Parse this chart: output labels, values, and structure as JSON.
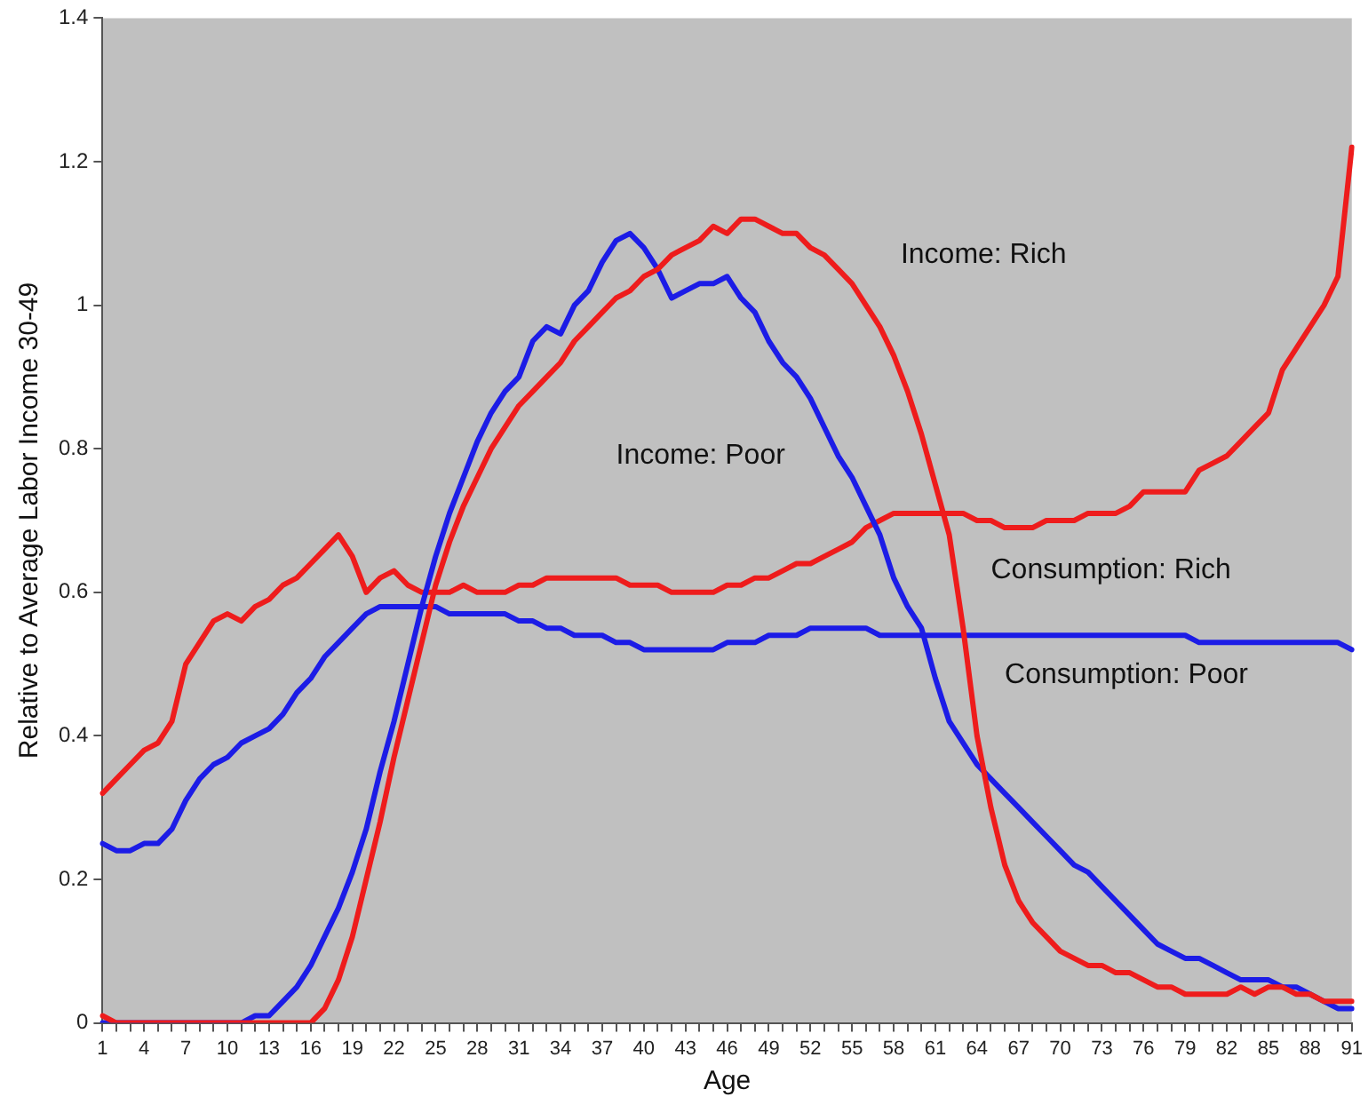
{
  "chart_data": {
    "type": "line",
    "xlabel": "Age",
    "ylabel": "Relative to Average Labor Income 30-49",
    "categories": [
      "1",
      null,
      null,
      "4",
      null,
      null,
      "7",
      null,
      null,
      "10",
      null,
      null,
      "13",
      null,
      null,
      "16",
      null,
      null,
      "19",
      null,
      null,
      "22",
      null,
      null,
      "25",
      null,
      null,
      "28",
      null,
      null,
      "31",
      null,
      null,
      "34",
      null,
      null,
      "37",
      null,
      null,
      "40",
      null,
      null,
      "43",
      null,
      null,
      "46",
      null,
      null,
      "49",
      null,
      null,
      "52",
      null,
      null,
      "55",
      null,
      null,
      "58",
      null,
      null,
      "61",
      null,
      null,
      "64",
      null,
      null,
      "67",
      null,
      null,
      "70",
      null,
      null,
      "73",
      null,
      null,
      "76",
      null,
      null,
      "79",
      null,
      null,
      "82",
      null,
      null,
      "85",
      null,
      null,
      "88",
      null,
      null,
      "91"
    ],
    "ylim": [
      0,
      1.4
    ],
    "yticks": [
      0,
      0.2,
      0.4,
      0.6,
      0.8,
      1,
      1.2,
      1.4
    ],
    "grid": false,
    "legend": false,
    "marker": "none",
    "line_style": "solid",
    "series": [
      {
        "name": "Income: Rich",
        "color": "#ee1c1c",
        "values": [
          0.01,
          0,
          0,
          0,
          0,
          0,
          0,
          0,
          0,
          0,
          0,
          0,
          0,
          0,
          0,
          0,
          0.02,
          0.06,
          0.12,
          0.2,
          0.28,
          0.37,
          0.45,
          0.53,
          0.61,
          0.67,
          0.72,
          0.76,
          0.8,
          0.83,
          0.86,
          0.88,
          0.9,
          0.92,
          0.95,
          0.97,
          0.99,
          1.01,
          1.02,
          1.04,
          1.05,
          1.07,
          1.08,
          1.09,
          1.11,
          1.1,
          1.12,
          1.12,
          1.11,
          1.1,
          1.1,
          1.08,
          1.07,
          1.05,
          1.03,
          1,
          0.97,
          0.93,
          0.88,
          0.82,
          0.75,
          0.68,
          0.55,
          0.4,
          0.3,
          0.22,
          0.17,
          0.14,
          0.12,
          0.1,
          0.09,
          0.08,
          0.08,
          0.07,
          0.07,
          0.06,
          0.05,
          0.05,
          0.04,
          0.04,
          0.04,
          0.04,
          0.05,
          0.04,
          0.05,
          0.05,
          0.04,
          0.04,
          0.03,
          0.03,
          0.03
        ]
      },
      {
        "name": "Income: Poor",
        "color": "#1c1ce6",
        "values": [
          0,
          0,
          0,
          0,
          0,
          0,
          0,
          0,
          0,
          0,
          0,
          0.01,
          0.01,
          0.03,
          0.05,
          0.08,
          0.12,
          0.16,
          0.21,
          0.27,
          0.35,
          0.42,
          0.5,
          0.58,
          0.65,
          0.71,
          0.76,
          0.81,
          0.85,
          0.88,
          0.9,
          0.95,
          0.97,
          0.96,
          1,
          1.02,
          1.06,
          1.09,
          1.1,
          1.08,
          1.05,
          1.01,
          1.02,
          1.03,
          1.03,
          1.04,
          1.01,
          0.99,
          0.95,
          0.92,
          0.9,
          0.87,
          0.83,
          0.79,
          0.76,
          0.72,
          0.68,
          0.62,
          0.58,
          0.55,
          0.48,
          0.42,
          0.39,
          0.36,
          0.34,
          0.32,
          0.3,
          0.28,
          0.26,
          0.24,
          0.22,
          0.21,
          0.19,
          0.17,
          0.15,
          0.13,
          0.11,
          0.1,
          0.09,
          0.09,
          0.08,
          0.07,
          0.06,
          0.06,
          0.06,
          0.05,
          0.05,
          0.04,
          0.03,
          0.02,
          0.02
        ]
      },
      {
        "name": "Consumption: Rich",
        "color": "#ee1c1c",
        "values": [
          0.32,
          0.34,
          0.36,
          0.38,
          0.39,
          0.42,
          0.5,
          0.53,
          0.56,
          0.57,
          0.56,
          0.58,
          0.59,
          0.61,
          0.62,
          0.64,
          0.66,
          0.68,
          0.65,
          0.6,
          0.62,
          0.63,
          0.61,
          0.6,
          0.6,
          0.6,
          0.61,
          0.6,
          0.6,
          0.6,
          0.61,
          0.61,
          0.62,
          0.62,
          0.62,
          0.62,
          0.62,
          0.62,
          0.61,
          0.61,
          0.61,
          0.6,
          0.6,
          0.6,
          0.6,
          0.61,
          0.61,
          0.62,
          0.62,
          0.63,
          0.64,
          0.64,
          0.65,
          0.66,
          0.67,
          0.69,
          0.7,
          0.71,
          0.71,
          0.71,
          0.71,
          0.71,
          0.71,
          0.7,
          0.7,
          0.69,
          0.69,
          0.69,
          0.7,
          0.7,
          0.7,
          0.71,
          0.71,
          0.71,
          0.72,
          0.74,
          0.74,
          0.74,
          0.74,
          0.77,
          0.78,
          0.79,
          0.81,
          0.83,
          0.85,
          0.91,
          0.94,
          0.97,
          1,
          1.04,
          1.22
        ]
      },
      {
        "name": "Consumption: Poor",
        "color": "#1c1ce6",
        "values": [
          0.25,
          0.24,
          0.24,
          0.25,
          0.25,
          0.27,
          0.31,
          0.34,
          0.36,
          0.37,
          0.39,
          0.4,
          0.41,
          0.43,
          0.46,
          0.48,
          0.51,
          0.53,
          0.55,
          0.57,
          0.58,
          0.58,
          0.58,
          0.58,
          0.58,
          0.57,
          0.57,
          0.57,
          0.57,
          0.57,
          0.56,
          0.56,
          0.55,
          0.55,
          0.54,
          0.54,
          0.54,
          0.53,
          0.53,
          0.52,
          0.52,
          0.52,
          0.52,
          0.52,
          0.52,
          0.53,
          0.53,
          0.53,
          0.54,
          0.54,
          0.54,
          0.55,
          0.55,
          0.55,
          0.55,
          0.55,
          0.54,
          0.54,
          0.54,
          0.54,
          0.54,
          0.54,
          0.54,
          0.54,
          0.54,
          0.54,
          0.54,
          0.54,
          0.54,
          0.54,
          0.54,
          0.54,
          0.54,
          0.54,
          0.54,
          0.54,
          0.54,
          0.54,
          0.54,
          0.53,
          0.53,
          0.53,
          0.53,
          0.53,
          0.53,
          0.53,
          0.53,
          0.53,
          0.53,
          0.53,
          0.52
        ]
      }
    ]
  }
}
